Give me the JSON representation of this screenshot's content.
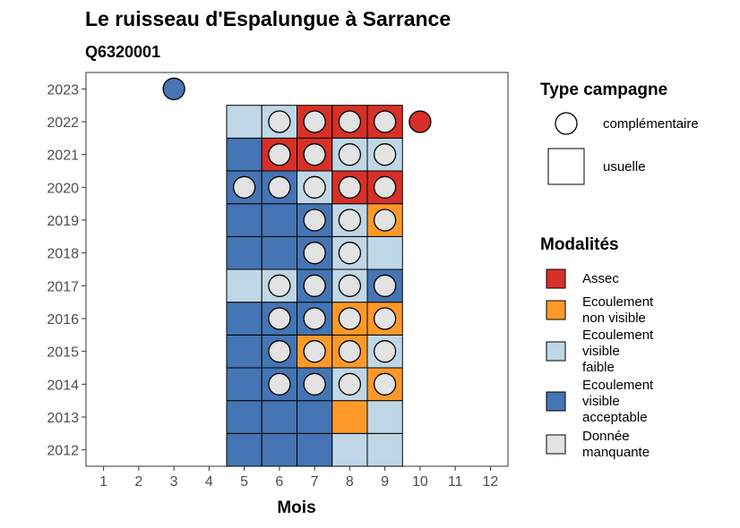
{
  "chart_data": {
    "type": "heatmap",
    "title": "Le ruisseau d'Espalungue à Sarrance",
    "subtitle": "Q6320001",
    "xlabel": "Mois",
    "ylabel": "",
    "x_ticks": [
      "1",
      "2",
      "3",
      "4",
      "5",
      "6",
      "7",
      "8",
      "9",
      "10",
      "11",
      "12"
    ],
    "y_ticks": [
      "2012",
      "2013",
      "2014",
      "2015",
      "2016",
      "2017",
      "2018",
      "2019",
      "2020",
      "2021",
      "2022",
      "2023"
    ],
    "xlim": [
      0.5,
      12.5
    ],
    "ylim": [
      2011.5,
      2023.5
    ],
    "grid": false,
    "legend_position": "right",
    "colors": {
      "assec": "#d73027",
      "non_visible": "#fe9929",
      "faible": "#bfd7e6",
      "acceptable": "#4575b4",
      "manquante": "#e3e3e3"
    },
    "legend_campagne": {
      "title": "Type campagne",
      "items": [
        {
          "shape": "circle",
          "label": "complémentaire"
        },
        {
          "shape": "square",
          "label": "usuelle"
        }
      ]
    },
    "legend_modalites": {
      "title": "Modalités",
      "items": [
        {
          "key": "assec",
          "lines": [
            "Assec"
          ]
        },
        {
          "key": "non_visible",
          "lines": [
            "Ecoulement",
            "non visible"
          ]
        },
        {
          "key": "faible",
          "lines": [
            "Ecoulement",
            "visible",
            "faible"
          ]
        },
        {
          "key": "acceptable",
          "lines": [
            "Ecoulement",
            "visible",
            "acceptable"
          ]
        },
        {
          "key": "manquante",
          "lines": [
            "Donnée",
            "manquante"
          ]
        }
      ]
    },
    "usuelle": [
      {
        "year": 2012,
        "month": 5,
        "v": "acceptable"
      },
      {
        "year": 2012,
        "month": 6,
        "v": "acceptable"
      },
      {
        "year": 2012,
        "month": 7,
        "v": "acceptable"
      },
      {
        "year": 2012,
        "month": 8,
        "v": "faible"
      },
      {
        "year": 2012,
        "month": 9,
        "v": "faible"
      },
      {
        "year": 2013,
        "month": 5,
        "v": "acceptable"
      },
      {
        "year": 2013,
        "month": 6,
        "v": "acceptable"
      },
      {
        "year": 2013,
        "month": 7,
        "v": "acceptable"
      },
      {
        "year": 2013,
        "month": 8,
        "v": "non_visible"
      },
      {
        "year": 2013,
        "month": 9,
        "v": "faible"
      },
      {
        "year": 2014,
        "month": 5,
        "v": "acceptable"
      },
      {
        "year": 2014,
        "month": 6,
        "v": "acceptable"
      },
      {
        "year": 2014,
        "month": 7,
        "v": "acceptable"
      },
      {
        "year": 2014,
        "month": 8,
        "v": "faible"
      },
      {
        "year": 2014,
        "month": 9,
        "v": "non_visible"
      },
      {
        "year": 2015,
        "month": 5,
        "v": "acceptable"
      },
      {
        "year": 2015,
        "month": 6,
        "v": "acceptable"
      },
      {
        "year": 2015,
        "month": 7,
        "v": "non_visible"
      },
      {
        "year": 2015,
        "month": 8,
        "v": "non_visible"
      },
      {
        "year": 2015,
        "month": 9,
        "v": "faible"
      },
      {
        "year": 2016,
        "month": 5,
        "v": "acceptable"
      },
      {
        "year": 2016,
        "month": 6,
        "v": "acceptable"
      },
      {
        "year": 2016,
        "month": 7,
        "v": "acceptable"
      },
      {
        "year": 2016,
        "month": 8,
        "v": "non_visible"
      },
      {
        "year": 2016,
        "month": 9,
        "v": "non_visible"
      },
      {
        "year": 2017,
        "month": 5,
        "v": "faible"
      },
      {
        "year": 2017,
        "month": 6,
        "v": "faible"
      },
      {
        "year": 2017,
        "month": 7,
        "v": "acceptable"
      },
      {
        "year": 2017,
        "month": 8,
        "v": "faible"
      },
      {
        "year": 2017,
        "month": 9,
        "v": "acceptable"
      },
      {
        "year": 2018,
        "month": 5,
        "v": "acceptable"
      },
      {
        "year": 2018,
        "month": 6,
        "v": "acceptable"
      },
      {
        "year": 2018,
        "month": 7,
        "v": "acceptable"
      },
      {
        "year": 2018,
        "month": 8,
        "v": "faible"
      },
      {
        "year": 2018,
        "month": 9,
        "v": "faible"
      },
      {
        "year": 2019,
        "month": 5,
        "v": "acceptable"
      },
      {
        "year": 2019,
        "month": 6,
        "v": "acceptable"
      },
      {
        "year": 2019,
        "month": 7,
        "v": "acceptable"
      },
      {
        "year": 2019,
        "month": 8,
        "v": "faible"
      },
      {
        "year": 2019,
        "month": 9,
        "v": "non_visible"
      },
      {
        "year": 2020,
        "month": 5,
        "v": "acceptable"
      },
      {
        "year": 2020,
        "month": 6,
        "v": "acceptable"
      },
      {
        "year": 2020,
        "month": 7,
        "v": "faible"
      },
      {
        "year": 2020,
        "month": 8,
        "v": "assec"
      },
      {
        "year": 2020,
        "month": 9,
        "v": "assec"
      },
      {
        "year": 2021,
        "month": 5,
        "v": "acceptable"
      },
      {
        "year": 2021,
        "month": 6,
        "v": "assec"
      },
      {
        "year": 2021,
        "month": 7,
        "v": "assec"
      },
      {
        "year": 2021,
        "month": 8,
        "v": "faible"
      },
      {
        "year": 2021,
        "month": 9,
        "v": "faible"
      },
      {
        "year": 2022,
        "month": 5,
        "v": "faible"
      },
      {
        "year": 2022,
        "month": 6,
        "v": "faible"
      },
      {
        "year": 2022,
        "month": 7,
        "v": "assec"
      },
      {
        "year": 2022,
        "month": 8,
        "v": "assec"
      },
      {
        "year": 2022,
        "month": 9,
        "v": "assec"
      }
    ],
    "complementaire": [
      {
        "year": 2014,
        "month": 6,
        "v": "manquante"
      },
      {
        "year": 2014,
        "month": 7,
        "v": "manquante"
      },
      {
        "year": 2014,
        "month": 8,
        "v": "manquante"
      },
      {
        "year": 2014,
        "month": 9,
        "v": "manquante"
      },
      {
        "year": 2015,
        "month": 6,
        "v": "manquante"
      },
      {
        "year": 2015,
        "month": 7,
        "v": "manquante"
      },
      {
        "year": 2015,
        "month": 8,
        "v": "manquante"
      },
      {
        "year": 2015,
        "month": 9,
        "v": "manquante"
      },
      {
        "year": 2016,
        "month": 6,
        "v": "manquante"
      },
      {
        "year": 2016,
        "month": 7,
        "v": "manquante"
      },
      {
        "year": 2016,
        "month": 8,
        "v": "manquante"
      },
      {
        "year": 2016,
        "month": 9,
        "v": "manquante"
      },
      {
        "year": 2017,
        "month": 6,
        "v": "manquante"
      },
      {
        "year": 2017,
        "month": 7,
        "v": "manquante"
      },
      {
        "year": 2017,
        "month": 8,
        "v": "manquante"
      },
      {
        "year": 2017,
        "month": 9,
        "v": "manquante"
      },
      {
        "year": 2018,
        "month": 7,
        "v": "manquante"
      },
      {
        "year": 2018,
        "month": 8,
        "v": "manquante"
      },
      {
        "year": 2019,
        "month": 7,
        "v": "manquante"
      },
      {
        "year": 2019,
        "month": 8,
        "v": "manquante"
      },
      {
        "year": 2019,
        "month": 9,
        "v": "manquante"
      },
      {
        "year": 2020,
        "month": 5,
        "v": "manquante"
      },
      {
        "year": 2020,
        "month": 6,
        "v": "manquante"
      },
      {
        "year": 2020,
        "month": 7,
        "v": "manquante"
      },
      {
        "year": 2020,
        "month": 8,
        "v": "manquante"
      },
      {
        "year": 2020,
        "month": 9,
        "v": "manquante"
      },
      {
        "year": 2021,
        "month": 6,
        "v": "manquante"
      },
      {
        "year": 2021,
        "month": 7,
        "v": "manquante"
      },
      {
        "year": 2021,
        "month": 8,
        "v": "manquante"
      },
      {
        "year": 2021,
        "month": 9,
        "v": "manquante"
      },
      {
        "year": 2022,
        "month": 6,
        "v": "manquante"
      },
      {
        "year": 2022,
        "month": 7,
        "v": "manquante"
      },
      {
        "year": 2022,
        "month": 8,
        "v": "manquante"
      },
      {
        "year": 2022,
        "month": 9,
        "v": "manquante"
      },
      {
        "year": 2022,
        "month": 10,
        "v": "assec"
      },
      {
        "year": 2023,
        "month": 3,
        "v": "acceptable"
      }
    ]
  }
}
